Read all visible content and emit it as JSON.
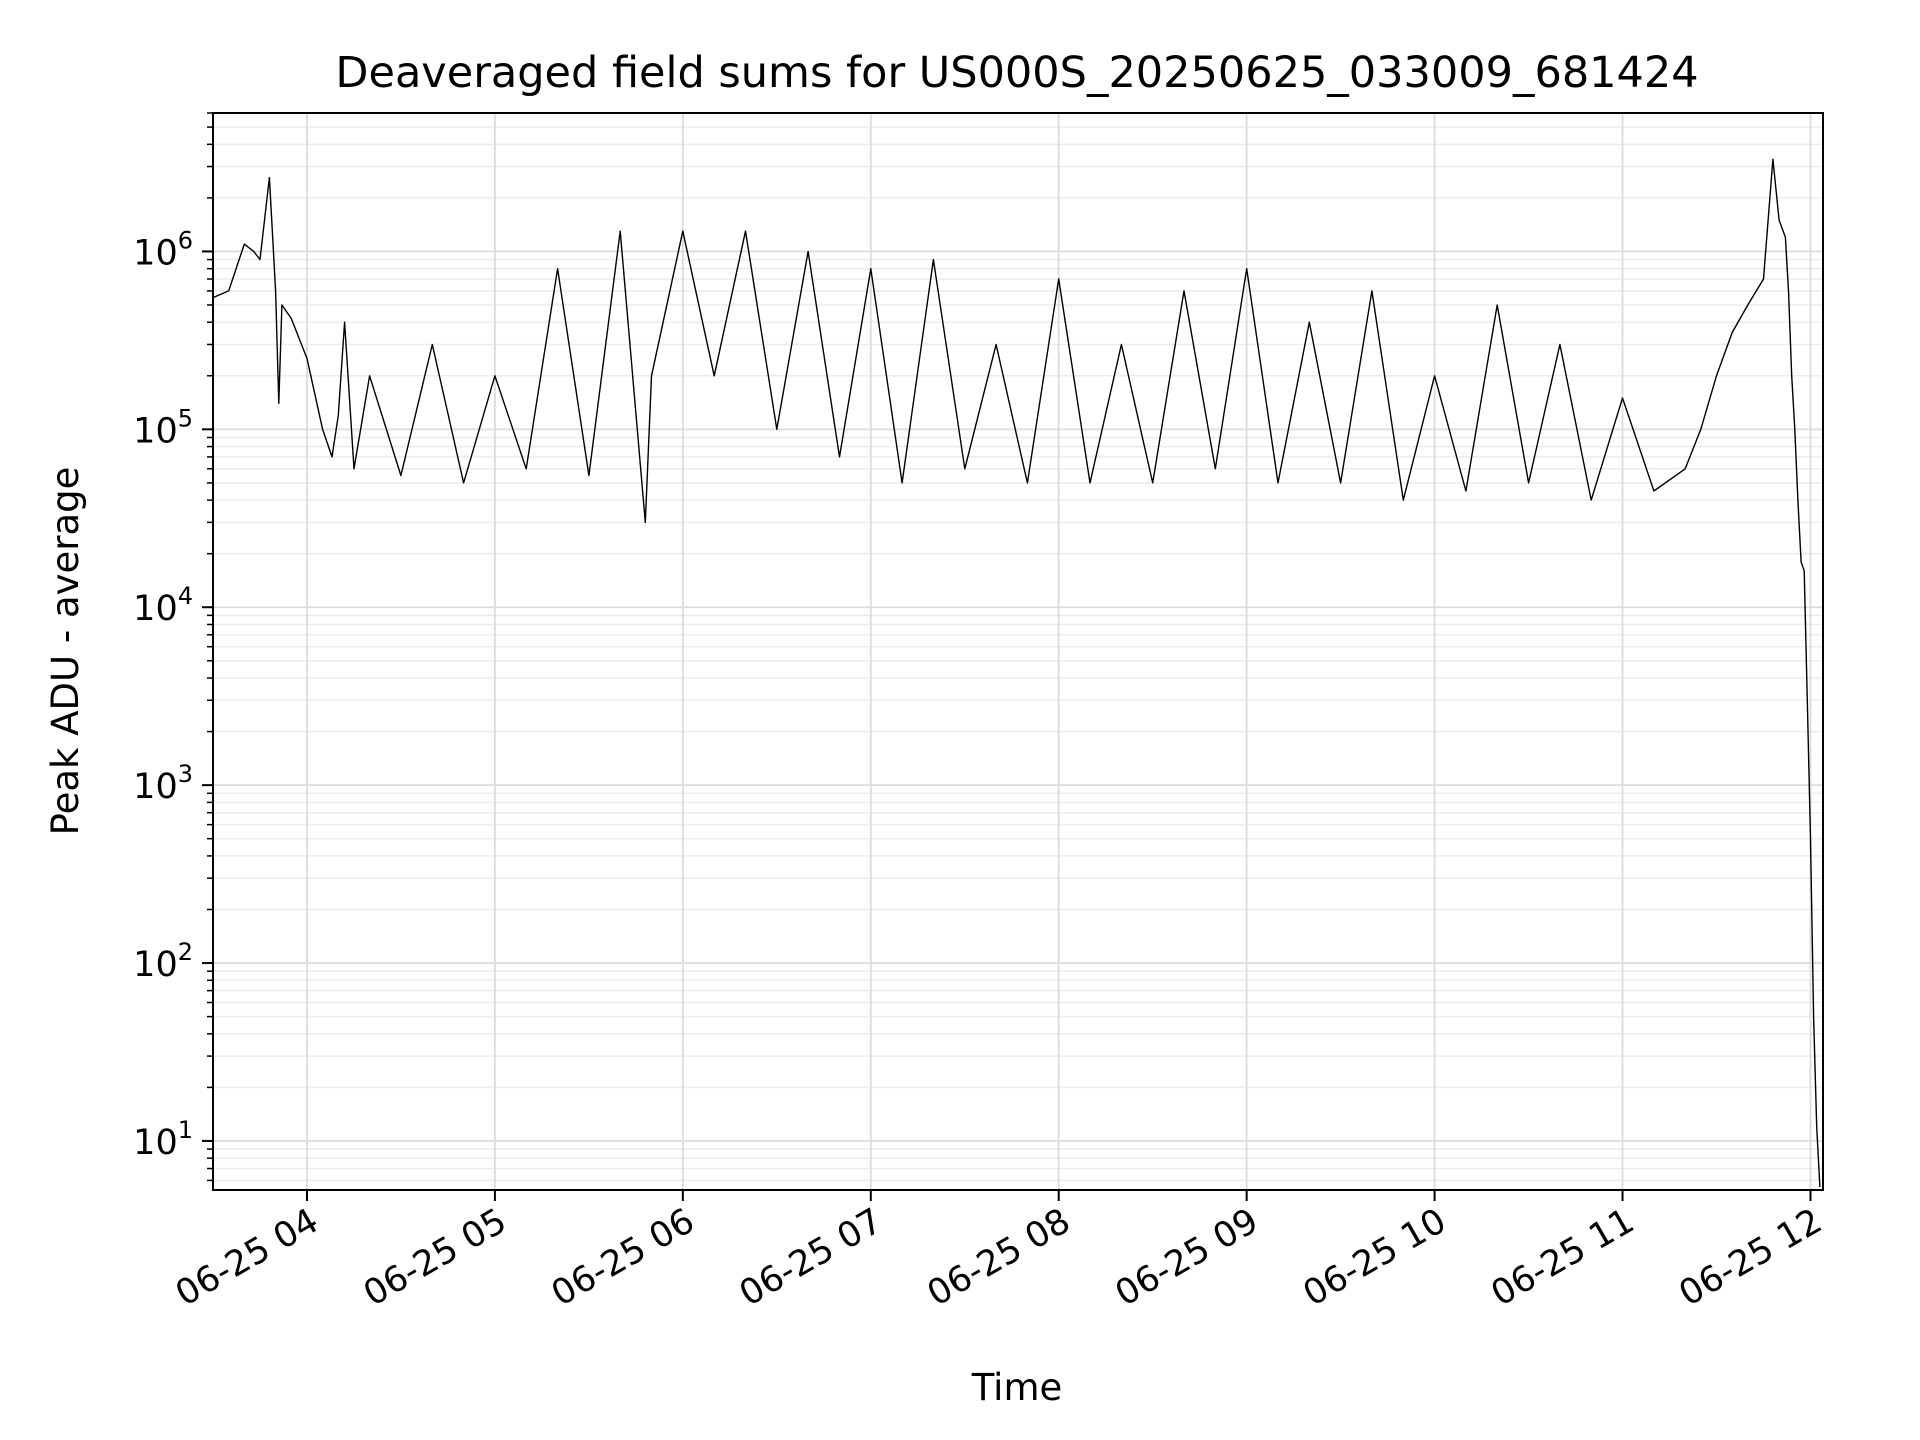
{
  "chart_data": {
    "type": "line",
    "title": "Deaveraged field sums for US000S_20250625_033009_681424",
    "xlabel": "Time",
    "ylabel": "Peak ADU - average",
    "yscale": "log",
    "grid": true,
    "legend": "none",
    "line_color": "#000000",
    "xlim": [
      "2025-06-25 03:30",
      "2025-06-25 12:04"
    ],
    "ylim": [
      5.3,
      6000000
    ],
    "x_ticks": [
      {
        "value": "2025-06-25 04:00",
        "label": "06-25 04"
      },
      {
        "value": "2025-06-25 05:00",
        "label": "06-25 05"
      },
      {
        "value": "2025-06-25 06:00",
        "label": "06-25 06"
      },
      {
        "value": "2025-06-25 07:00",
        "label": "06-25 07"
      },
      {
        "value": "2025-06-25 08:00",
        "label": "06-25 08"
      },
      {
        "value": "2025-06-25 09:00",
        "label": "06-25 09"
      },
      {
        "value": "2025-06-25 10:00",
        "label": "06-25 10"
      },
      {
        "value": "2025-06-25 11:00",
        "label": "06-25 11"
      },
      {
        "value": "2025-06-25 12:00",
        "label": "06-25 12"
      }
    ],
    "y_ticks": [
      {
        "value": 10,
        "base": "10",
        "exp": "1"
      },
      {
        "value": 100,
        "base": "10",
        "exp": "2"
      },
      {
        "value": 1000,
        "base": "10",
        "exp": "3"
      },
      {
        "value": 10000,
        "base": "10",
        "exp": "4"
      },
      {
        "value": 100000,
        "base": "10",
        "exp": "5"
      },
      {
        "value": 1000000,
        "base": "10",
        "exp": "6"
      }
    ],
    "series": [
      {
        "x": [
          "2025-06-25 03:30",
          "2025-06-25 03:35",
          "2025-06-25 03:40",
          "2025-06-25 03:43",
          "2025-06-25 03:45",
          "2025-06-25 03:48",
          "2025-06-25 03:50",
          "2025-06-25 03:51",
          "2025-06-25 03:52",
          "2025-06-25 03:55",
          "2025-06-25 04:00",
          "2025-06-25 04:05",
          "2025-06-25 04:08",
          "2025-06-25 04:10",
          "2025-06-25 04:12",
          "2025-06-25 04:15",
          "2025-06-25 04:20",
          "2025-06-25 04:30",
          "2025-06-25 04:40",
          "2025-06-25 04:50",
          "2025-06-25 05:00",
          "2025-06-25 05:10",
          "2025-06-25 05:20",
          "2025-06-25 05:30",
          "2025-06-25 05:40",
          "2025-06-25 05:48",
          "2025-06-25 05:50",
          "2025-06-25 06:00",
          "2025-06-25 06:10",
          "2025-06-25 06:20",
          "2025-06-25 06:30",
          "2025-06-25 06:40",
          "2025-06-25 06:50",
          "2025-06-25 07:00",
          "2025-06-25 07:10",
          "2025-06-25 07:20",
          "2025-06-25 07:30",
          "2025-06-25 07:40",
          "2025-06-25 07:50",
          "2025-06-25 08:00",
          "2025-06-25 08:10",
          "2025-06-25 08:20",
          "2025-06-25 08:30",
          "2025-06-25 08:40",
          "2025-06-25 08:50",
          "2025-06-25 09:00",
          "2025-06-25 09:10",
          "2025-06-25 09:20",
          "2025-06-25 09:30",
          "2025-06-25 09:40",
          "2025-06-25 09:50",
          "2025-06-25 10:00",
          "2025-06-25 10:10",
          "2025-06-25 10:20",
          "2025-06-25 10:30",
          "2025-06-25 10:40",
          "2025-06-25 10:50",
          "2025-06-25 11:00",
          "2025-06-25 11:10",
          "2025-06-25 11:20",
          "2025-06-25 11:25",
          "2025-06-25 11:30",
          "2025-06-25 11:35",
          "2025-06-25 11:40",
          "2025-06-25 11:45",
          "2025-06-25 11:48",
          "2025-06-25 11:50",
          "2025-06-25 11:52",
          "2025-06-25 11:53",
          "2025-06-25 11:54",
          "2025-06-25 11:55",
          "2025-06-25 11:56",
          "2025-06-25 11:57",
          "2025-06-25 11:58",
          "2025-06-25 11:59",
          "2025-06-25 12:00",
          "2025-06-25 12:01",
          "2025-06-25 12:02",
          "2025-06-25 12:03"
        ],
        "y": [
          550000,
          600000,
          1100000,
          1000000,
          900000,
          2600000,
          600000,
          140000,
          500000,
          420000,
          250000,
          100000,
          70000,
          120000,
          400000,
          60000,
          200000,
          55000,
          300000,
          50000,
          200000,
          60000,
          800000,
          55000,
          1300000,
          30000,
          200000,
          1300000,
          200000,
          1300000,
          100000,
          1000000,
          70000,
          800000,
          50000,
          900000,
          60000,
          300000,
          50000,
          700000,
          50000,
          300000,
          50000,
          600000,
          60000,
          800000,
          50000,
          400000,
          50000,
          600000,
          40000,
          200000,
          45000,
          500000,
          50000,
          300000,
          40000,
          150000,
          45000,
          60000,
          100000,
          200000,
          350000,
          500000,
          700000,
          3300000,
          1500000,
          1200000,
          600000,
          200000,
          100000,
          40000,
          18000,
          16000,
          3000,
          500,
          50,
          12,
          5.5
        ]
      }
    ]
  }
}
